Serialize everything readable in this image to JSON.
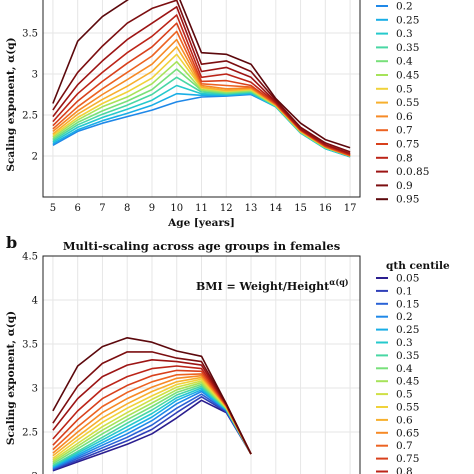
{
  "chart_data": [
    {
      "type": "line",
      "title": "",
      "xlabel": "Age [years]",
      "ylabel": "Scaling exponent, α(q)",
      "x": [
        5,
        6,
        7,
        8,
        9,
        10,
        11,
        12,
        13,
        14,
        15,
        16,
        17
      ],
      "x_ticks": [
        "5",
        "6",
        "7",
        "8",
        "9",
        "10",
        "11",
        "12",
        "13",
        "14",
        "15",
        "16",
        "17"
      ],
      "ylim": [
        1.5,
        4.0
      ],
      "y_ticks": [
        "2",
        "2.5",
        "3",
        "3.5"
      ],
      "grid": true,
      "legend_position": "right",
      "series": [
        {
          "name": "0.2",
          "values": [
            2.13,
            2.3,
            2.4,
            2.48,
            2.56,
            2.66,
            2.72,
            2.73,
            2.75,
            2.6,
            2.28,
            2.09,
            1.99
          ]
        },
        {
          "name": "0.25",
          "values": [
            2.15,
            2.32,
            2.43,
            2.52,
            2.62,
            2.76,
            2.74,
            2.74,
            2.76,
            2.6,
            2.28,
            2.09,
            1.99
          ]
        },
        {
          "name": "0.3",
          "values": [
            2.17,
            2.35,
            2.47,
            2.57,
            2.68,
            2.86,
            2.76,
            2.75,
            2.77,
            2.6,
            2.28,
            2.09,
            1.99
          ]
        },
        {
          "name": "0.35",
          "values": [
            2.19,
            2.38,
            2.51,
            2.62,
            2.75,
            2.96,
            2.78,
            2.76,
            2.78,
            2.61,
            2.29,
            2.1,
            2.0
          ]
        },
        {
          "name": "0.4",
          "values": [
            2.21,
            2.41,
            2.55,
            2.67,
            2.81,
            3.06,
            2.8,
            2.77,
            2.79,
            2.61,
            2.29,
            2.1,
            2.0
          ]
        },
        {
          "name": "0.45",
          "values": [
            2.23,
            2.44,
            2.6,
            2.72,
            2.88,
            3.15,
            2.81,
            2.78,
            2.8,
            2.61,
            2.29,
            2.1,
            2.0
          ]
        },
        {
          "name": "0.5",
          "values": [
            2.25,
            2.47,
            2.64,
            2.78,
            2.95,
            3.24,
            2.83,
            2.79,
            2.81,
            2.62,
            2.3,
            2.11,
            2.0
          ]
        },
        {
          "name": "0.55",
          "values": [
            2.27,
            2.51,
            2.69,
            2.85,
            3.03,
            3.33,
            2.84,
            2.8,
            2.82,
            2.62,
            2.3,
            2.11,
            2.0
          ]
        },
        {
          "name": "0.6",
          "values": [
            2.3,
            2.55,
            2.75,
            2.93,
            3.12,
            3.42,
            2.86,
            2.82,
            2.83,
            2.63,
            2.31,
            2.11,
            2.0
          ]
        },
        {
          "name": "0.7",
          "values": [
            2.33,
            2.6,
            2.82,
            3.02,
            3.22,
            3.52,
            2.88,
            2.86,
            2.84,
            2.63,
            2.31,
            2.12,
            2.01
          ]
        },
        {
          "name": "0.75",
          "values": [
            2.37,
            2.67,
            2.91,
            3.13,
            3.33,
            3.62,
            2.91,
            2.92,
            2.86,
            2.64,
            2.32,
            2.12,
            2.01
          ]
        },
        {
          "name": "0.8",
          "values": [
            2.42,
            2.76,
            3.02,
            3.26,
            3.46,
            3.72,
            2.96,
            3.0,
            2.9,
            2.65,
            2.32,
            2.13,
            2.02
          ]
        },
        {
          "name": "0.0.85",
          "values": [
            2.48,
            2.87,
            3.16,
            3.42,
            3.62,
            3.82,
            3.03,
            3.08,
            2.96,
            2.66,
            2.33,
            2.14,
            2.03
          ]
        },
        {
          "name": "0.9",
          "values": [
            2.56,
            3.02,
            3.34,
            3.62,
            3.8,
            3.9,
            3.12,
            3.16,
            3.03,
            2.68,
            2.35,
            2.16,
            2.05
          ]
        },
        {
          "name": "0.95",
          "values": [
            2.64,
            3.4,
            3.7,
            3.9,
            4.1,
            4.0,
            3.26,
            3.24,
            3.12,
            2.7,
            2.4,
            2.2,
            2.1
          ]
        }
      ]
    },
    {
      "type": "line",
      "title": "Multi-scaling across age groups in females",
      "xlabel": "",
      "ylabel": "Scaling exponent, α(q)",
      "x": [
        5,
        6,
        7,
        8,
        9,
        10,
        11,
        12,
        13
      ],
      "ylim": [
        2.0,
        4.5
      ],
      "y_ticks": [
        "2",
        "2.5",
        "3",
        "3.5",
        "4",
        "4.5"
      ],
      "grid": true,
      "legend_position": "right",
      "legend_title": "qth centile",
      "annotation": "BMI = Weight/Height",
      "annotation_exponent": "α(q)",
      "series": [
        {
          "name": "0.05",
          "values": [
            2.06,
            2.16,
            2.26,
            2.36,
            2.48,
            2.66,
            2.86,
            2.72,
            2.25
          ]
        },
        {
          "name": "0.1",
          "values": [
            2.07,
            2.18,
            2.29,
            2.4,
            2.53,
            2.72,
            2.9,
            2.73,
            2.25
          ]
        },
        {
          "name": "0.15",
          "values": [
            2.08,
            2.2,
            2.32,
            2.44,
            2.58,
            2.77,
            2.93,
            2.74,
            2.25
          ]
        },
        {
          "name": "0.2",
          "values": [
            2.09,
            2.22,
            2.35,
            2.48,
            2.63,
            2.82,
            2.96,
            2.75,
            2.25
          ]
        },
        {
          "name": "0.25",
          "values": [
            2.1,
            2.24,
            2.38,
            2.52,
            2.67,
            2.86,
            2.98,
            2.75,
            2.25
          ]
        },
        {
          "name": "0.3",
          "values": [
            2.11,
            2.26,
            2.41,
            2.56,
            2.71,
            2.89,
            3.0,
            2.76,
            2.25
          ]
        },
        {
          "name": "0.35",
          "values": [
            2.12,
            2.28,
            2.44,
            2.6,
            2.75,
            2.92,
            3.02,
            2.76,
            2.25
          ]
        },
        {
          "name": "0.4",
          "values": [
            2.14,
            2.31,
            2.48,
            2.64,
            2.79,
            2.95,
            3.04,
            2.77,
            2.25
          ]
        },
        {
          "name": "0.45",
          "values": [
            2.16,
            2.34,
            2.52,
            2.68,
            2.83,
            2.98,
            3.06,
            2.77,
            2.25
          ]
        },
        {
          "name": "0.5",
          "values": [
            2.18,
            2.37,
            2.56,
            2.72,
            2.87,
            3.01,
            3.08,
            2.78,
            2.25
          ]
        },
        {
          "name": "0.55",
          "values": [
            2.2,
            2.41,
            2.61,
            2.77,
            2.91,
            3.04,
            3.1,
            2.78,
            2.25
          ]
        },
        {
          "name": "0.6",
          "values": [
            2.23,
            2.45,
            2.66,
            2.82,
            2.96,
            3.07,
            3.12,
            2.79,
            2.25
          ]
        },
        {
          "name": "0.65",
          "values": [
            2.26,
            2.5,
            2.72,
            2.88,
            3.01,
            3.11,
            3.14,
            2.79,
            2.25
          ]
        },
        {
          "name": "0.7",
          "values": [
            2.3,
            2.56,
            2.79,
            2.95,
            3.07,
            3.15,
            3.16,
            2.8,
            2.25
          ]
        },
        {
          "name": "0.75",
          "values": [
            2.35,
            2.64,
            2.88,
            3.03,
            3.14,
            3.2,
            3.19,
            2.8,
            2.25
          ]
        },
        {
          "name": "0.8",
          "values": [
            2.42,
            2.74,
            2.99,
            3.13,
            3.22,
            3.25,
            3.22,
            2.81,
            2.25
          ]
        },
        {
          "name": "",
          "values": [
            2.52,
            2.88,
            3.13,
            3.26,
            3.32,
            3.3,
            3.26,
            2.81,
            2.25
          ]
        },
        {
          "name": "",
          "values": [
            2.6,
            3.02,
            3.28,
            3.41,
            3.41,
            3.34,
            3.3,
            2.82,
            2.25
          ]
        },
        {
          "name": "",
          "values": [
            2.74,
            3.25,
            3.47,
            3.57,
            3.52,
            3.42,
            3.36,
            2.82,
            2.25
          ]
        }
      ]
    }
  ],
  "panel_labels": {
    "b": "b"
  },
  "colormap": [
    "#2b1e8f",
    "#2f3fb8",
    "#2a62d6",
    "#1f88e8",
    "#19aee6",
    "#25c9cc",
    "#48d7a4",
    "#78e07a",
    "#a6e35a",
    "#cfe046",
    "#f0d23a",
    "#f7b02e",
    "#f68a26",
    "#ec6322",
    "#d8401c",
    "#bc2418",
    "#9c1414",
    "#7c0e10",
    "#5c080c"
  ]
}
